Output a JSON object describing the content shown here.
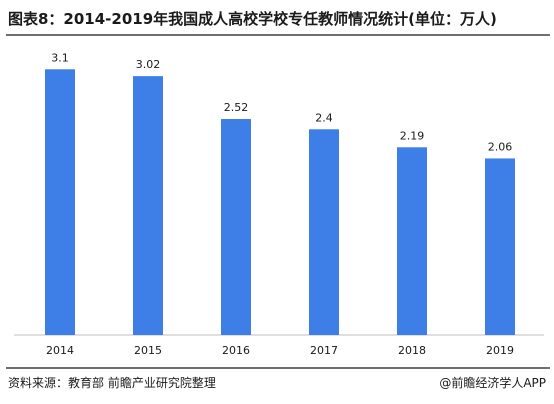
{
  "title": "图表8：2014-2019年我国成人高校学校专任教师情况统计(单位：万人)",
  "source": "资料来源：教育部 前瞻产业研究院整理",
  "brand": "@前瞻经济学人APP",
  "colors": {
    "bar": "#3d7fe6",
    "axis": "#bfbfbf",
    "text": "#1a1a1a"
  },
  "chart_data": {
    "type": "bar",
    "title": "图表8：2014-2019年我国成人高校学校专任教师情况统计(单位：万人)",
    "categories": [
      "2014",
      "2015",
      "2016",
      "2017",
      "2018",
      "2019"
    ],
    "values": [
      3.1,
      3.02,
      2.52,
      2.4,
      2.19,
      2.06
    ],
    "value_labels": [
      "3.1",
      "3.02",
      "2.52",
      "2.4",
      "2.19",
      "2.06"
    ],
    "ylim": [
      0,
      3.5
    ],
    "grid": false,
    "legend": "none"
  }
}
